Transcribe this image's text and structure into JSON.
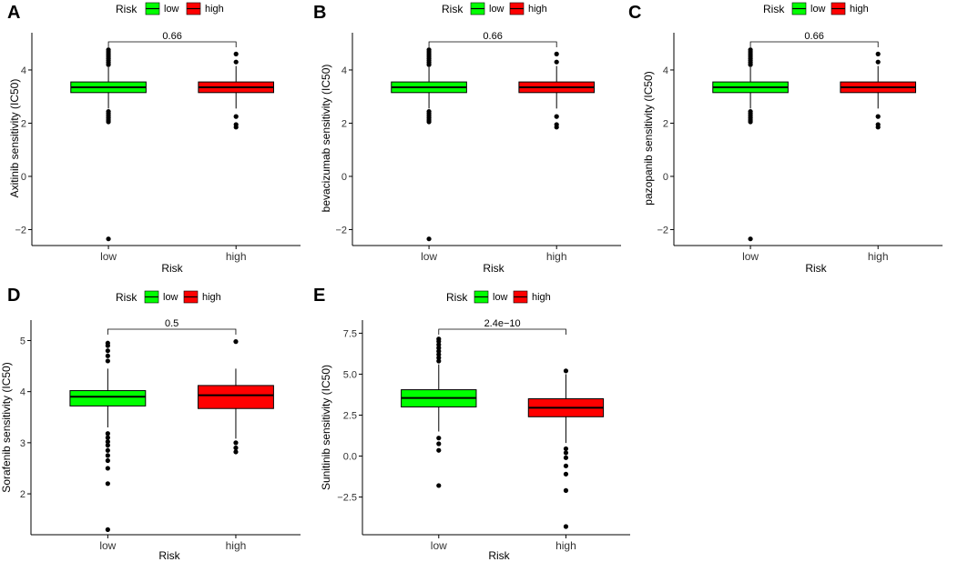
{
  "legend": {
    "title": "Risk",
    "labels": [
      "low",
      "high"
    ]
  },
  "colors": {
    "low": "#00ff00",
    "high": "#ff0000",
    "point": "#000000",
    "line": "#000000"
  },
  "chart_data": [
    {
      "panel": "A",
      "type": "box",
      "xlabel": "Risk",
      "ylabel": "Axitinib sensitivity (IC50)",
      "categories": [
        "low",
        "high"
      ],
      "yticks": [
        -2,
        0,
        2,
        4
      ],
      "ylim": [
        -2.6,
        5.4
      ],
      "pvalue": "0.66",
      "boxes": [
        {
          "group": "low",
          "q1": 3.15,
          "median": 3.35,
          "q3": 3.55,
          "whisker_low": 2.55,
          "whisker_high": 4.1,
          "outliers": [
            -2.35,
            2.05,
            2.12,
            2.2,
            2.28,
            2.36,
            2.44,
            4.2,
            4.28,
            4.36,
            4.44,
            4.52,
            4.6,
            4.68,
            4.76
          ]
        },
        {
          "group": "high",
          "q1": 3.15,
          "median": 3.35,
          "q3": 3.55,
          "whisker_low": 2.55,
          "whisker_high": 4.15,
          "outliers": [
            1.85,
            1.95,
            2.25,
            4.3,
            4.6
          ]
        }
      ]
    },
    {
      "panel": "B",
      "type": "box",
      "xlabel": "Risk",
      "ylabel": "bevacizumab sensitivity (IC50)",
      "categories": [
        "low",
        "high"
      ],
      "yticks": [
        -2,
        0,
        2,
        4
      ],
      "ylim": [
        -2.6,
        5.4
      ],
      "pvalue": "0.66",
      "boxes": [
        {
          "group": "low",
          "q1": 3.15,
          "median": 3.35,
          "q3": 3.55,
          "whisker_low": 2.55,
          "whisker_high": 4.1,
          "outliers": [
            -2.35,
            2.05,
            2.12,
            2.2,
            2.28,
            2.36,
            2.44,
            4.2,
            4.28,
            4.36,
            4.44,
            4.52,
            4.6,
            4.68,
            4.76
          ]
        },
        {
          "group": "high",
          "q1": 3.15,
          "median": 3.35,
          "q3": 3.55,
          "whisker_low": 2.55,
          "whisker_high": 4.15,
          "outliers": [
            1.85,
            1.95,
            2.25,
            4.3,
            4.6
          ]
        }
      ]
    },
    {
      "panel": "C",
      "type": "box",
      "xlabel": "Risk",
      "ylabel": "pazopanib sensitivity (IC50)",
      "categories": [
        "low",
        "high"
      ],
      "yticks": [
        -2,
        0,
        2,
        4
      ],
      "ylim": [
        -2.6,
        5.4
      ],
      "pvalue": "0.66",
      "boxes": [
        {
          "group": "low",
          "q1": 3.15,
          "median": 3.35,
          "q3": 3.55,
          "whisker_low": 2.55,
          "whisker_high": 4.1,
          "outliers": [
            -2.35,
            2.05,
            2.12,
            2.2,
            2.28,
            2.36,
            2.44,
            4.2,
            4.28,
            4.36,
            4.44,
            4.52,
            4.6,
            4.68,
            4.76
          ]
        },
        {
          "group": "high",
          "q1": 3.15,
          "median": 3.35,
          "q3": 3.55,
          "whisker_low": 2.55,
          "whisker_high": 4.15,
          "outliers": [
            1.85,
            1.95,
            2.25,
            4.3,
            4.6
          ]
        }
      ]
    },
    {
      "panel": "D",
      "type": "box",
      "xlabel": "Risk",
      "ylabel": "Sorafenib sensitivity (IC50)",
      "categories": [
        "low",
        "high"
      ],
      "yticks": [
        2,
        3,
        4,
        5
      ],
      "ylim": [
        1.2,
        5.4
      ],
      "pvalue": "0.5",
      "boxes": [
        {
          "group": "low",
          "q1": 3.72,
          "median": 3.9,
          "q3": 4.02,
          "whisker_low": 3.3,
          "whisker_high": 4.45,
          "outliers": [
            1.3,
            2.2,
            2.5,
            2.65,
            2.75,
            2.85,
            2.95,
            3.02,
            3.1,
            3.18,
            4.6,
            4.7,
            4.8,
            4.9,
            4.95
          ]
        },
        {
          "group": "high",
          "q1": 3.67,
          "median": 3.93,
          "q3": 4.12,
          "whisker_low": 3.08,
          "whisker_high": 4.45,
          "outliers": [
            2.82,
            2.9,
            3.0,
            4.98
          ]
        }
      ]
    },
    {
      "panel": "E",
      "type": "box",
      "xlabel": "Risk",
      "ylabel": "Sunitinib sensitivity (IC50)",
      "categories": [
        "low",
        "high"
      ],
      "yticks": [
        -2.5,
        0.0,
        2.5,
        5.0,
        7.5
      ],
      "ylim": [
        -4.8,
        8.3
      ],
      "yticklabels": [
        "-2.5",
        "0.0",
        "2.5",
        "5.0",
        "7.5"
      ],
      "pvalue": "2.4e−10",
      "boxes": [
        {
          "group": "low",
          "q1": 3.0,
          "median": 3.55,
          "q3": 4.05,
          "whisker_low": 1.5,
          "whisker_high": 5.6,
          "outliers": [
            -1.8,
            0.35,
            0.75,
            1.1,
            5.8,
            6.0,
            6.2,
            6.4,
            6.6,
            6.8,
            7.0,
            7.15
          ]
        },
        {
          "group": "high",
          "q1": 2.4,
          "median": 2.95,
          "q3": 3.5,
          "whisker_low": 0.8,
          "whisker_high": 5.0,
          "outliers": [
            -4.3,
            -2.1,
            -1.1,
            -0.6,
            -0.1,
            0.2,
            0.45,
            5.2
          ]
        }
      ]
    }
  ]
}
